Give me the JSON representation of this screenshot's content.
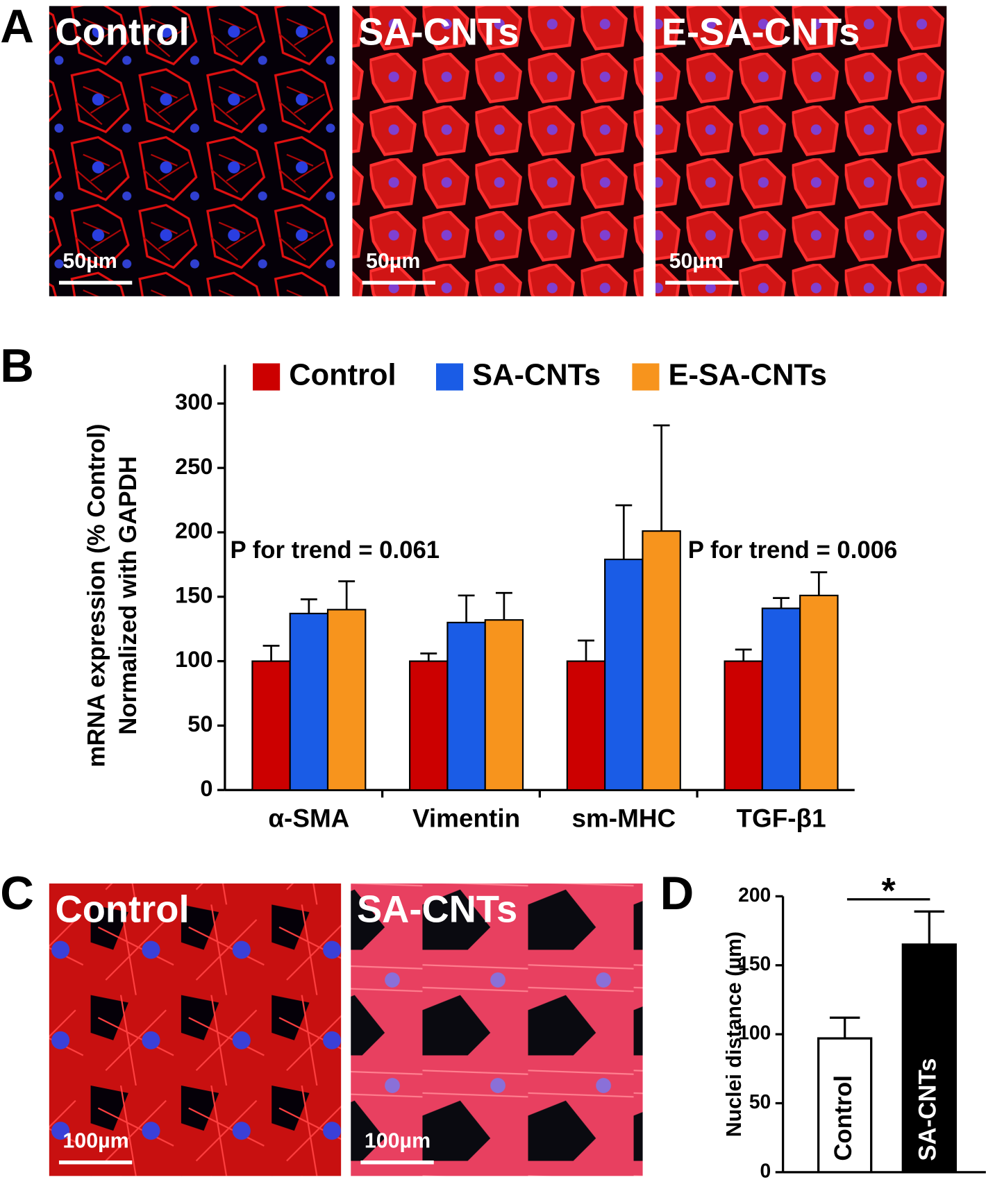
{
  "panel_labels": [
    "A",
    "B",
    "C",
    "D"
  ],
  "images": [
    {
      "label": "Control",
      "scale_bar": "50µm"
    },
    {
      "label": "SA-CNTs",
      "scale_bar": "50µm"
    },
    {
      "label": "E-SA-CNTs",
      "scale_bar": "50µm"
    },
    {
      "label": "Control",
      "scale_bar": "100µm"
    },
    {
      "label": "SA-CNTs",
      "scale_bar": "100µm"
    }
  ],
  "chart_data": [
    {
      "type": "bar",
      "ylabel": [
        "mRNA expression (% Control)",
        "Normalized with GAPDH"
      ],
      "categories": [
        "α-SMA",
        "Vimentin",
        "sm-MHC",
        "TGF-β1"
      ],
      "series": [
        {
          "name": "Control",
          "color": "#cc0000",
          "values": [
            100,
            100,
            100,
            100
          ],
          "errors": [
            12,
            6,
            16,
            9
          ]
        },
        {
          "name": "SA-CNTs",
          "color": "#1a5ce6",
          "values": [
            137,
            130,
            179,
            141
          ],
          "errors": [
            11,
            21,
            42,
            8
          ]
        },
        {
          "name": "E-SA-CNTs",
          "color": "#f7941d",
          "values": [
            140,
            132,
            201,
            151
          ],
          "errors": [
            22,
            21,
            82,
            18
          ]
        }
      ],
      "annotations": [
        "P for trend = 0.061",
        "P for trend = 0.006"
      ],
      "ylim": [
        0,
        330
      ],
      "yticks": [
        0,
        50,
        100,
        150,
        200,
        250,
        300
      ],
      "legend": "top"
    },
    {
      "type": "bar",
      "ylabel": "Nuclei distance (µm)",
      "categories": [
        "Control",
        "SA-CNTs"
      ],
      "values": [
        97,
        165
      ],
      "errors": [
        15,
        24
      ],
      "colors": [
        "#ffffff",
        "#000000"
      ],
      "annotation": "*",
      "ylim": [
        0,
        200
      ],
      "yticks": [
        0,
        50,
        100,
        150,
        200
      ]
    }
  ]
}
